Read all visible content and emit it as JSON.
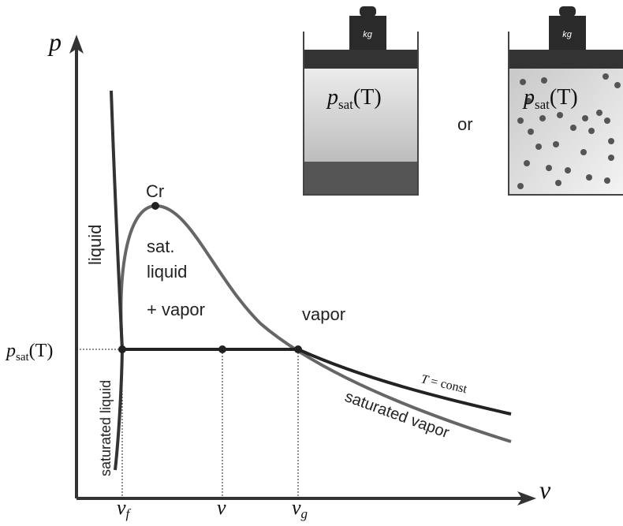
{
  "axes": {
    "y_label": "p",
    "x_label": "v"
  },
  "pressure_label": {
    "base": "p",
    "sub": "sat",
    "arg": "(T)"
  },
  "pistons": [
    {
      "weight": "kg",
      "pressure": {
        "base": "p",
        "sub": "sat",
        "arg": "(T)"
      }
    },
    {
      "weight": "kg",
      "pressure": {
        "base": "p",
        "sub": "sat",
        "arg": "(T)"
      }
    }
  ],
  "connector": "or",
  "critical_point": "Cr",
  "regions": {
    "liquid": "liquid",
    "mixture": [
      "sat.",
      "liquid",
      "+ vapor"
    ],
    "vapor": "vapor"
  },
  "curves": {
    "isotherm": {
      "var": "T",
      "rest": "= const"
    },
    "saturated_vapor": "saturated vapor",
    "saturated_liquid": "saturated liquid"
  },
  "volumes": [
    {
      "base": "v",
      "sub": "f"
    },
    {
      "base": "v",
      "sub": null
    },
    {
      "base": "v",
      "sub": "g"
    }
  ]
}
